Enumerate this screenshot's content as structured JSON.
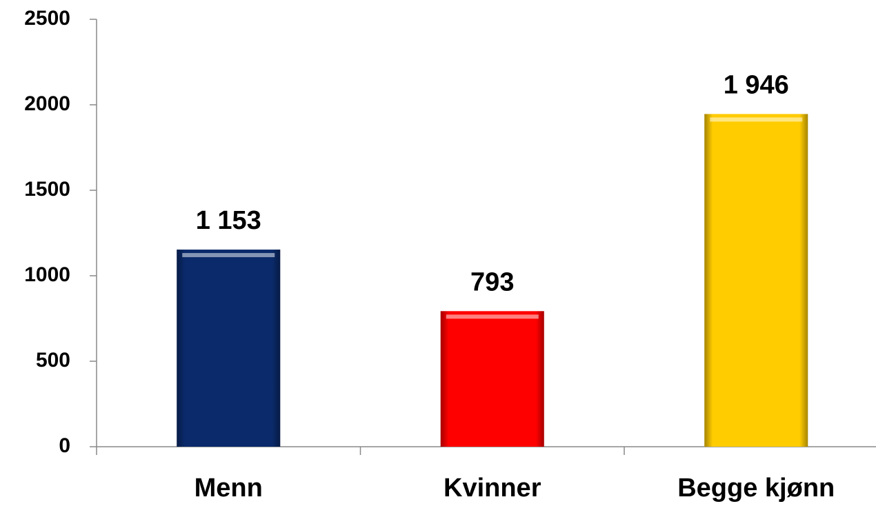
{
  "chart_data": {
    "type": "bar",
    "categories": [
      "Menn",
      "Kvinner",
      "Begge kjønn"
    ],
    "values": [
      1153,
      793,
      1946
    ],
    "value_labels": [
      "1 153",
      "793",
      "1 946"
    ],
    "colors": [
      "#0a2a6b",
      "#ff0000",
      "#ffcc00"
    ],
    "ylim": [
      0,
      2500
    ],
    "yticks": [
      0,
      500,
      1000,
      1500,
      2000,
      2500
    ],
    "grid": false
  }
}
